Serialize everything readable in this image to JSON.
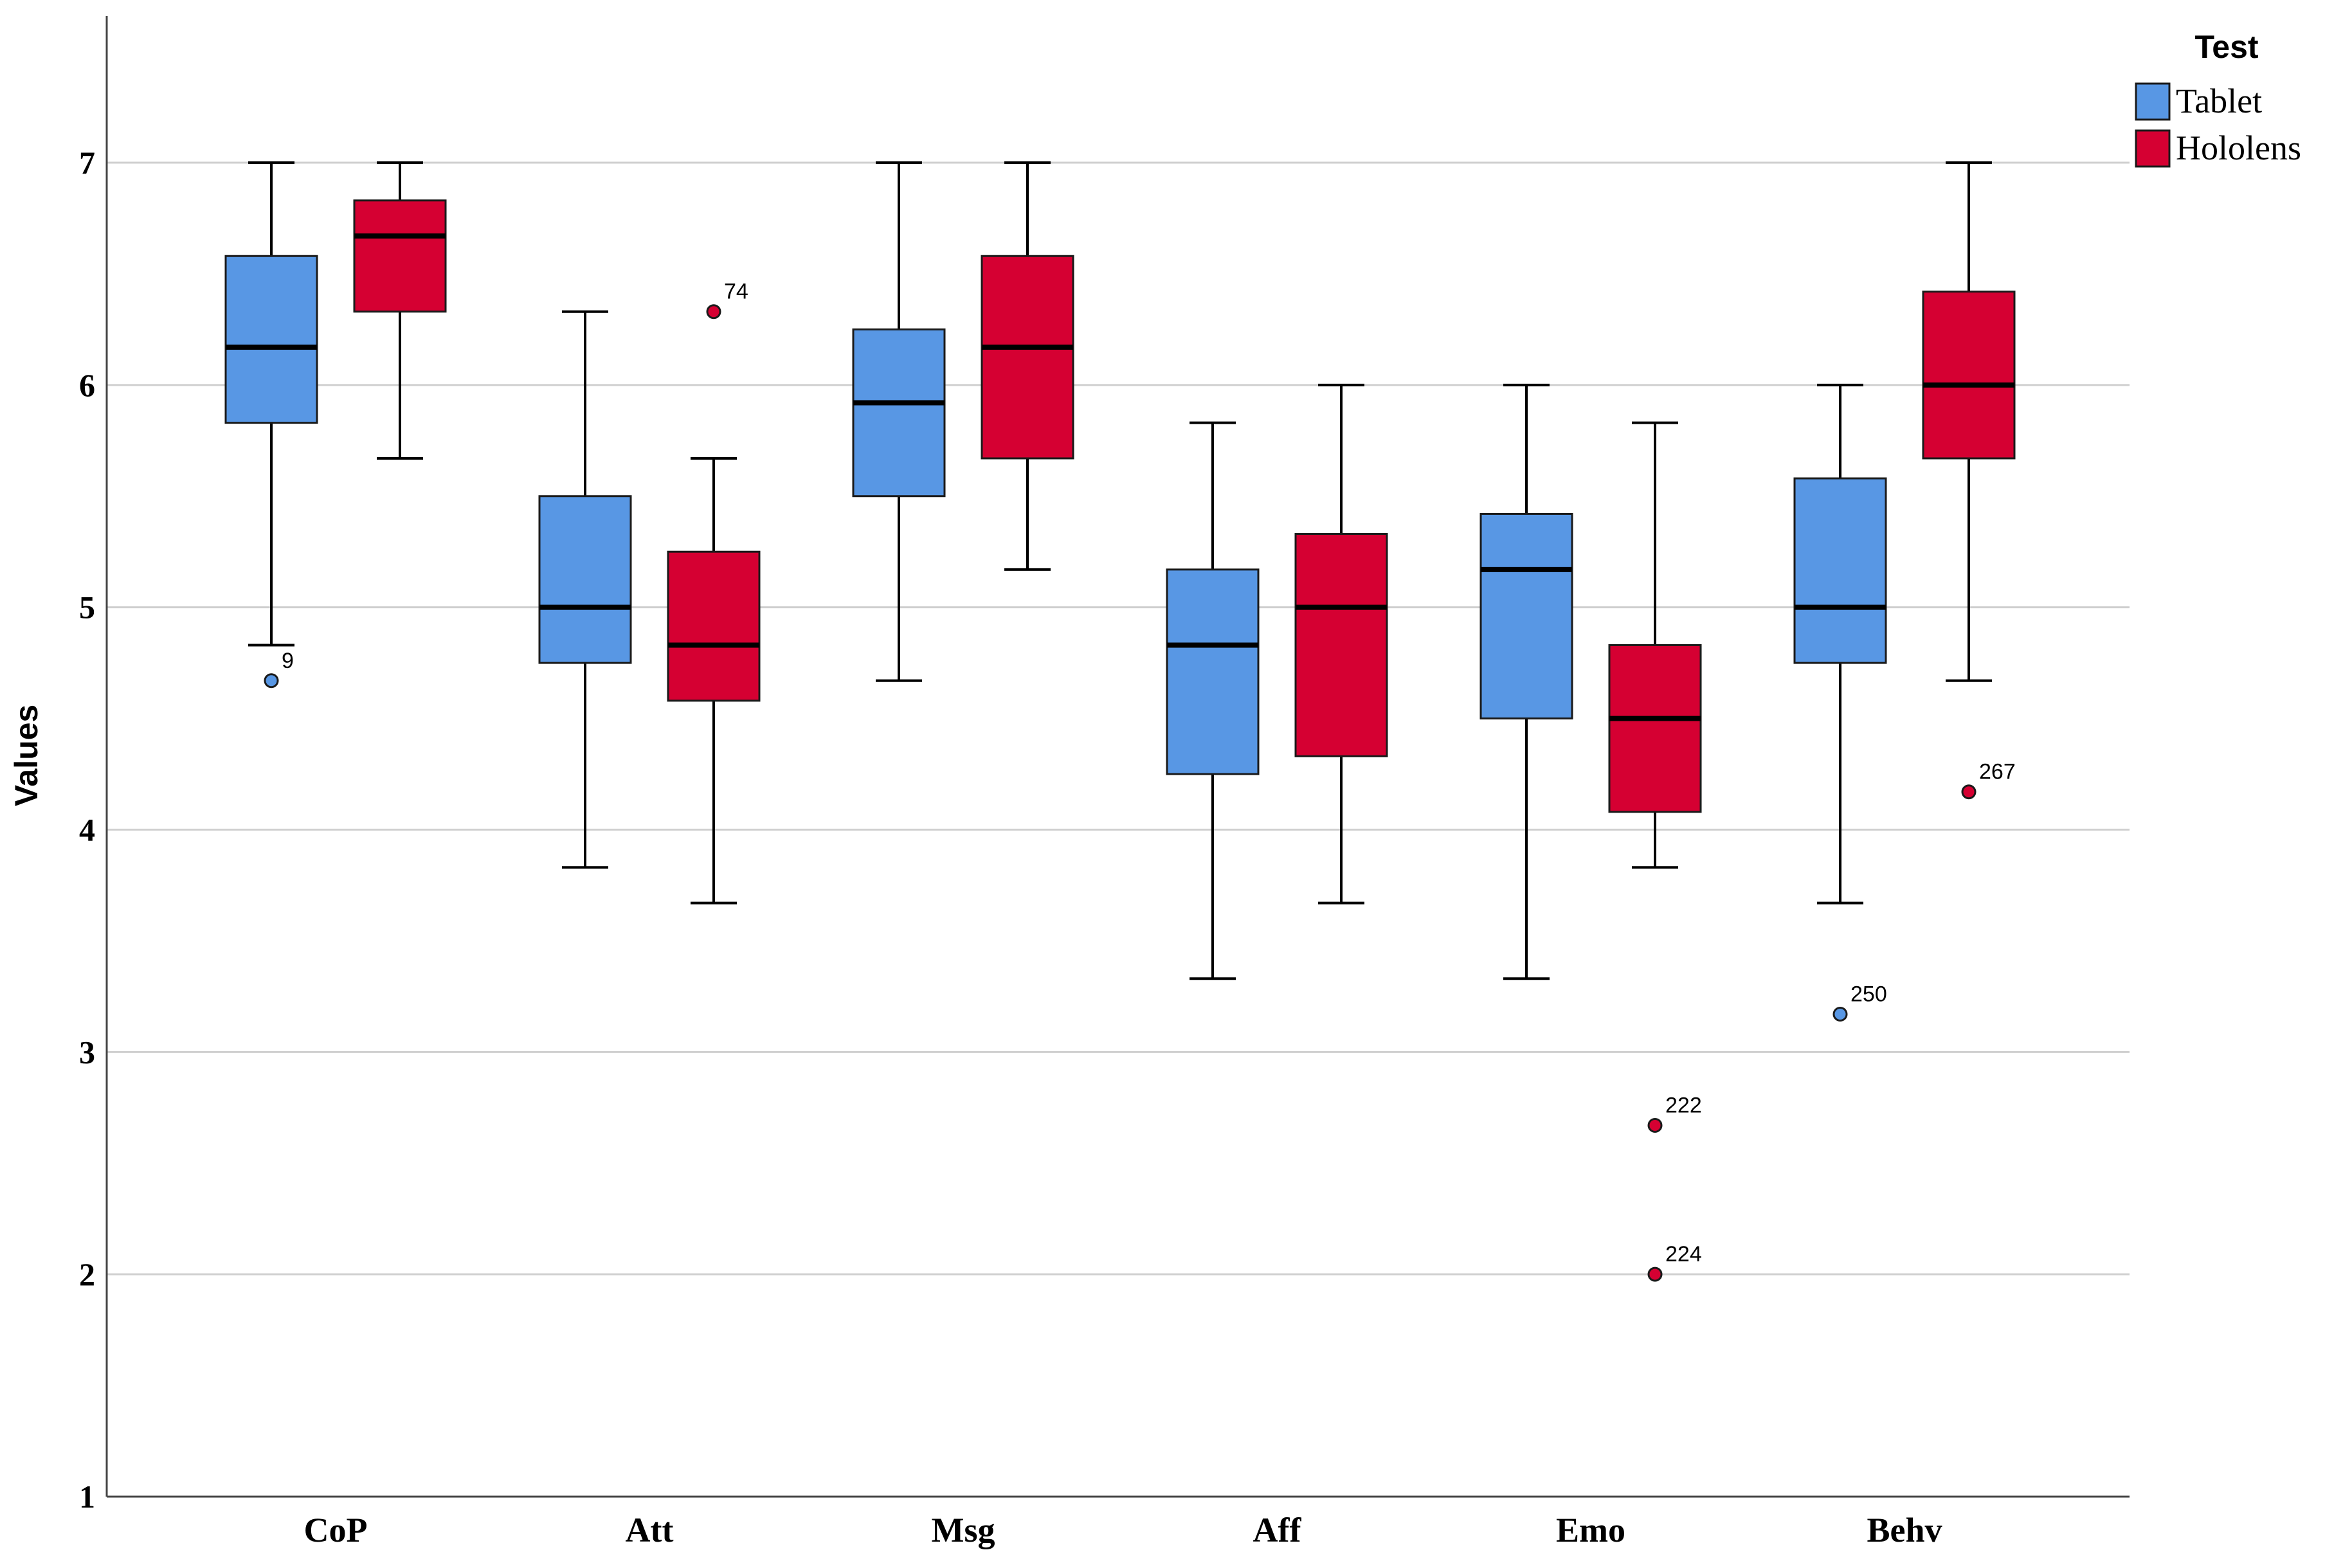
{
  "chart_data": {
    "type": "boxplot",
    "title": "",
    "xlabel": "",
    "ylabel": "Values",
    "ylim": [
      1,
      7.67
    ],
    "yticks": [
      1,
      2,
      3,
      4,
      5,
      6,
      7
    ],
    "grid": true,
    "legend": {
      "title": "Test",
      "placement": "top-right",
      "entries": [
        {
          "name": "Tablet",
          "color": "#5897E4"
        },
        {
          "name": "Hololens",
          "color": "#D50032"
        }
      ]
    },
    "categories": [
      "CoP",
      "Att",
      "Msg",
      "Aff",
      "Emo",
      "Behv"
    ],
    "series": [
      {
        "name": "Tablet",
        "color": "#5897E4",
        "boxes": [
          {
            "min": 4.83,
            "q1": 5.83,
            "median": 6.17,
            "q3": 6.58,
            "max": 7.0,
            "outliers": [
              {
                "value": 4.67,
                "label": "9"
              }
            ]
          },
          {
            "min": 3.83,
            "q1": 4.75,
            "median": 5.0,
            "q3": 5.5,
            "max": 6.33,
            "outliers": []
          },
          {
            "min": 4.67,
            "q1": 5.5,
            "median": 5.92,
            "q3": 6.25,
            "max": 7.0,
            "outliers": []
          },
          {
            "min": 3.33,
            "q1": 4.25,
            "median": 4.83,
            "q3": 5.17,
            "max": 5.83,
            "outliers": []
          },
          {
            "min": 3.33,
            "q1": 4.5,
            "median": 5.17,
            "q3": 5.42,
            "max": 6.0,
            "outliers": []
          },
          {
            "min": 3.67,
            "q1": 4.75,
            "median": 5.0,
            "q3": 5.58,
            "max": 6.0,
            "outliers": [
              {
                "value": 3.17,
                "label": "250"
              }
            ]
          }
        ]
      },
      {
        "name": "Hololens",
        "color": "#D50032",
        "boxes": [
          {
            "min": 5.67,
            "q1": 6.33,
            "median": 6.67,
            "q3": 6.83,
            "max": 7.0,
            "outliers": []
          },
          {
            "min": 3.67,
            "q1": 4.58,
            "median": 4.83,
            "q3": 5.25,
            "max": 5.67,
            "outliers": [
              {
                "value": 6.33,
                "label": "74"
              }
            ]
          },
          {
            "min": 5.17,
            "q1": 5.67,
            "median": 6.17,
            "q3": 6.58,
            "max": 7.0,
            "outliers": []
          },
          {
            "min": 3.67,
            "q1": 4.33,
            "median": 5.0,
            "q3": 5.33,
            "max": 6.0,
            "outliers": []
          },
          {
            "min": 3.83,
            "q1": 4.08,
            "median": 4.5,
            "q3": 4.83,
            "max": 5.83,
            "outliers": [
              {
                "value": 2.67,
                "label": "222"
              },
              {
                "value": 2.0,
                "label": "224"
              }
            ]
          },
          {
            "min": 4.67,
            "q1": 5.67,
            "median": 6.0,
            "q3": 6.42,
            "max": 7.0,
            "outliers": [
              {
                "value": 4.17,
                "label": "267"
              }
            ]
          }
        ]
      }
    ]
  }
}
